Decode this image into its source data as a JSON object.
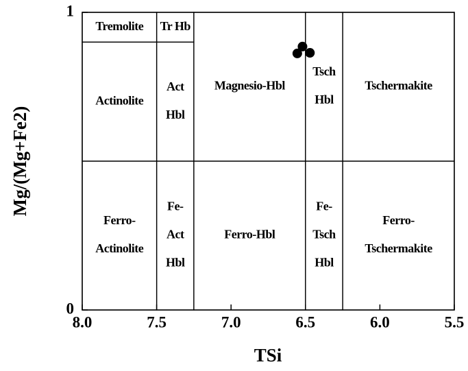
{
  "chart_data": {
    "type": "scatter",
    "x_label": "TSi",
    "y_label": "Mg/(Mg+Fe2)",
    "xlim": [
      8.0,
      5.5
    ],
    "ylim": [
      0,
      1
    ],
    "xticks": [
      {
        "value": 8.0,
        "label": "8.0"
      },
      {
        "value": 7.5,
        "label": "7.5"
      },
      {
        "value": 7.0,
        "label": "7.0"
      },
      {
        "value": 6.5,
        "label": "6.5"
      },
      {
        "value": 6.0,
        "label": "6.0"
      },
      {
        "value": 5.5,
        "label": "5.5"
      }
    ],
    "yticks": [
      0,
      1
    ],
    "series": [
      {
        "color": "#000000",
        "x": [
          6.52,
          6.555,
          6.47
        ],
        "values": [
          0.885,
          0.862,
          0.864
        ]
      }
    ],
    "regions": [
      {
        "lines": [
          "Tremolite"
        ],
        "x": [
          8.0,
          7.5
        ],
        "y": [
          0.9,
          1.0
        ]
      },
      {
        "lines": [
          "Tr Hb"
        ],
        "x": [
          7.5,
          7.25
        ],
        "y": [
          0.9,
          1.0
        ]
      },
      {
        "lines": [
          "Actinolite"
        ],
        "x": [
          8.0,
          7.5
        ],
        "y": [
          0.5,
          0.9
        ]
      },
      {
        "lines": [
          "Act",
          "Hbl"
        ],
        "x": [
          7.5,
          7.25
        ],
        "y": [
          0.5,
          0.9
        ]
      },
      {
        "lines": [
          "Magnesio-Hbl"
        ],
        "x": [
          7.25,
          6.5
        ],
        "y": [
          0.5,
          1.0
        ]
      },
      {
        "lines": [
          "Tsch",
          "Hbl"
        ],
        "x": [
          6.5,
          6.25
        ],
        "y": [
          0.5,
          1.0
        ]
      },
      {
        "lines": [
          "Tschermakite"
        ],
        "x": [
          6.25,
          5.5
        ],
        "y": [
          0.5,
          1.0
        ]
      },
      {
        "lines": [
          "Ferro-",
          "Actinolite"
        ],
        "x": [
          8.0,
          7.5
        ],
        "y": [
          0.0,
          0.5
        ]
      },
      {
        "lines": [
          "Fe-",
          "Act",
          "Hbl"
        ],
        "x": [
          7.5,
          7.25
        ],
        "y": [
          0.0,
          0.5
        ]
      },
      {
        "lines": [
          "Ferro-Hbl"
        ],
        "x": [
          7.25,
          6.5
        ],
        "y": [
          0.0,
          0.5
        ]
      },
      {
        "lines": [
          "Fe-",
          "Tsch",
          "Hbl"
        ],
        "x": [
          6.5,
          6.25
        ],
        "y": [
          0.0,
          0.5
        ]
      },
      {
        "lines": [
          "Ferro-",
          "Tschermakite"
        ],
        "x": [
          6.25,
          5.5
        ],
        "y": [
          0.0,
          0.5
        ]
      }
    ]
  }
}
